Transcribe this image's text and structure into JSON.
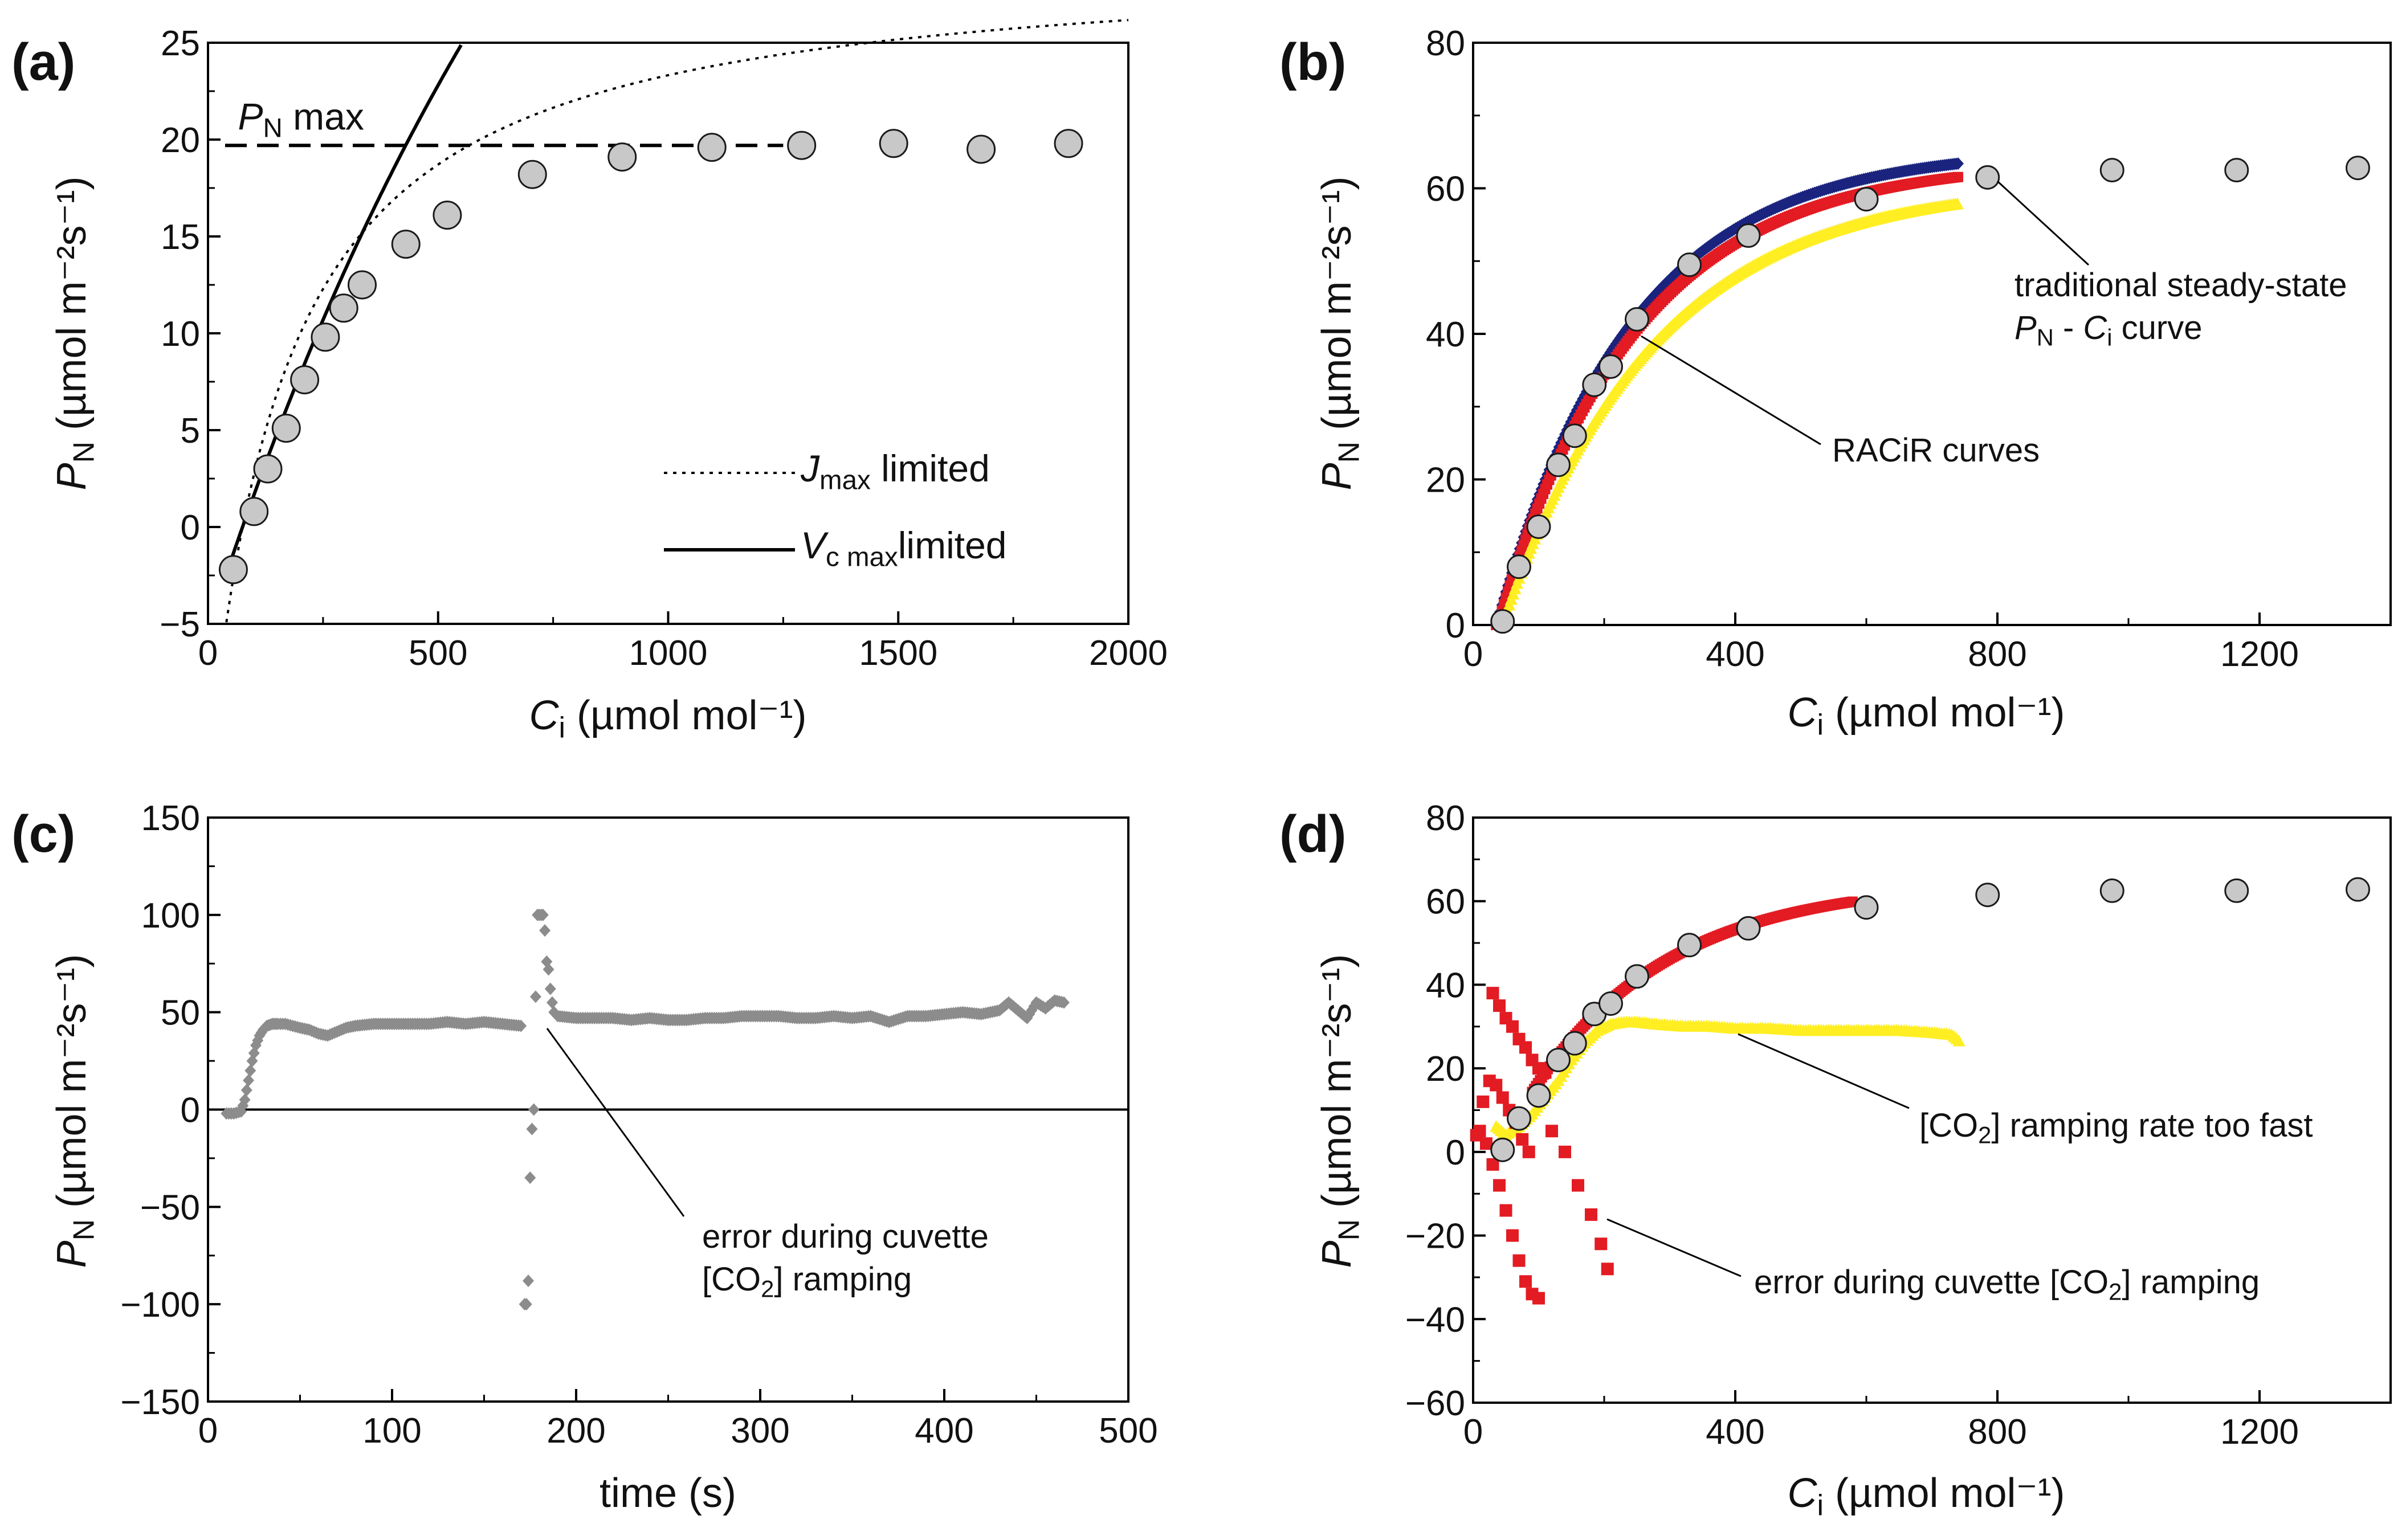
{
  "chart_data": [
    {
      "panel": "(a)",
      "type": "scatter",
      "xlabel": "C",
      "xlabel_sub": "i",
      "xlabel_unit": "(µmol mol⁻¹)",
      "ylabel": "P",
      "ylabel_sub": "N",
      "ylabel_unit": "(µmol m⁻²s⁻¹)",
      "xlim": [
        0,
        2000
      ],
      "ylim": [
        -5,
        25
      ],
      "xticks": [
        "0",
        "500",
        "1000",
        "1500",
        "2000"
      ],
      "yticks": [
        "−5",
        "0",
        "5",
        "10",
        "15",
        "20",
        "25"
      ],
      "points": {
        "x": [
          55,
          100,
          130,
          170,
          210,
          255,
          295,
          335,
          430,
          520,
          705,
          900,
          1095,
          1290,
          1490,
          1680,
          1870
        ],
        "y": [
          -2.2,
          0.8,
          3.0,
          5.1,
          7.6,
          9.8,
          11.3,
          12.5,
          14.6,
          16.1,
          18.2,
          19.1,
          19.6,
          19.7,
          19.8,
          19.5,
          19.8
        ]
      },
      "pn_max": 19.7,
      "pn_max_label": "P",
      "pn_max_label_sub": "N",
      "pn_max_label_tail": "max",
      "legend": [
        {
          "style": "dotted",
          "main": "J",
          "sub": "max",
          "tail": "limited"
        },
        {
          "style": "solid",
          "main": "V",
          "sub": "c max",
          "tail": "limited"
        }
      ]
    },
    {
      "panel": "(b)",
      "type": "scatter",
      "xlabel": "C",
      "xlabel_sub": "i",
      "xlabel_unit": "(µmol mol⁻¹)",
      "ylabel": "P",
      "ylabel_sub": "N",
      "ylabel_unit": "(µmol m⁻²s⁻¹)",
      "xlim": [
        0,
        1400
      ],
      "ylim": [
        0,
        80
      ],
      "xticks": [
        "0",
        "400",
        "800",
        "1200"
      ],
      "yticks": [
        "0",
        "20",
        "40",
        "60",
        "80"
      ],
      "steady_state": {
        "x": [
          45,
          70,
          100,
          130,
          155,
          185,
          210,
          250,
          330,
          420,
          600,
          785,
          975,
          1165,
          1350
        ],
        "y": [
          0.5,
          8.0,
          13.5,
          22.0,
          26.0,
          33.0,
          35.5,
          42.0,
          49.5,
          53.5,
          58.5,
          61.5,
          62.5,
          62.5,
          62.8
        ]
      },
      "racir_series": [
        {
          "name": "RACiR dark blue",
          "color": "#1a237e",
          "xmin": 35,
          "xmax": 740,
          "pmax": 64,
          "k": 205,
          "offset": 1.5
        },
        {
          "name": "RACiR red",
          "color": "#e31b23",
          "xmin": 35,
          "xmax": 740,
          "pmax": 63,
          "k": 210,
          "offset": 0.8
        },
        {
          "name": "RACiR yellow",
          "color": "#ffee22",
          "xmin": 40,
          "xmax": 740,
          "pmax": 62,
          "k": 230,
          "offset": -1.2
        }
      ],
      "annotations": {
        "steady_state_line1": "traditional steady-state",
        "steady_state_line2_p": "P",
        "steady_state_line2_sub": "N",
        "steady_state_line2_mid": " - ",
        "steady_state_line2_c": "C",
        "steady_state_line2_csub": "i",
        "steady_state_line2_tail": " curve",
        "racir": "RACiR curves"
      }
    },
    {
      "panel": "(c)",
      "type": "scatter",
      "xlabel": "time (s)",
      "ylabel": "P",
      "ylabel_sub": "N",
      "ylabel_unit": "(µmol m⁻²s⁻¹)",
      "xlim": [
        0,
        500
      ],
      "ylim": [
        -150,
        150
      ],
      "xticks": [
        "0",
        "100",
        "200",
        "300",
        "400",
        "500"
      ],
      "yticks": [
        "−150",
        "−100",
        "−50",
        "0",
        "50",
        "100",
        "150"
      ],
      "color": "#8c8c8c",
      "series_segments": [
        {
          "t": [
            10,
            14,
            18,
            20,
            22,
            24,
            26,
            28,
            30,
            32,
            35,
            38,
            42,
            46,
            50,
            55,
            60,
            65,
            70,
            75,
            80,
            90,
            100,
            110,
            120,
            130,
            140,
            150,
            160,
            170
          ],
          "v": [
            -2,
            -2,
            -1,
            5,
            15,
            25,
            33,
            38,
            41,
            43,
            44,
            44,
            44,
            43,
            42,
            41,
            39,
            38,
            40,
            42,
            43,
            44,
            44,
            44,
            44,
            45,
            44,
            45,
            44,
            43
          ]
        },
        {
          "t": [
            172,
            173,
            174,
            175,
            176,
            177,
            178,
            179,
            180,
            181,
            182,
            183,
            184,
            185,
            186,
            187,
            188
          ],
          "v": [
            -100,
            -100,
            -88,
            -35,
            -10,
            0,
            58,
            100,
            100,
            100,
            100,
            92,
            76,
            72,
            62,
            55,
            50
          ]
        },
        {
          "t": [
            190,
            200,
            210,
            220,
            230,
            240,
            250,
            260,
            270,
            280,
            290,
            300,
            310,
            320,
            330,
            340,
            350,
            360,
            370,
            380,
            390,
            400,
            410,
            420,
            430,
            435,
            440,
            445,
            450,
            455,
            460,
            465
          ],
          "v": [
            48,
            47,
            47,
            47,
            46,
            47,
            46,
            46,
            47,
            47,
            48,
            48,
            48,
            47,
            47,
            48,
            47,
            48,
            45,
            48,
            48,
            49,
            50,
            49,
            51,
            55,
            51,
            47,
            55,
            52,
            56,
            55
          ]
        }
      ],
      "annotation": {
        "line1": "error during cuvette",
        "line2_pre": "[CO",
        "line2_sub": "2",
        "line2_post": "] ramping"
      }
    },
    {
      "panel": "(d)",
      "type": "scatter",
      "xlabel": "C",
      "xlabel_sub": "i",
      "xlabel_unit": "(µmol mol⁻¹)",
      "ylabel": "P",
      "ylabel_sub": "N",
      "ylabel_unit": "(µmol m⁻²s⁻¹)",
      "xlim": [
        0,
        1400
      ],
      "ylim": [
        -60,
        80
      ],
      "xticks": [
        "0",
        "400",
        "800",
        "1200"
      ],
      "yticks": [
        "−60",
        "−40",
        "−20",
        "0",
        "20",
        "40",
        "60",
        "80"
      ],
      "steady_state": {
        "x": [
          45,
          70,
          100,
          130,
          155,
          185,
          210,
          250,
          330,
          420,
          600,
          785,
          975,
          1165,
          1350
        ],
        "y": [
          0.5,
          8.0,
          13.5,
          22.0,
          26.0,
          33.0,
          35.5,
          42.0,
          49.5,
          53.5,
          58.5,
          61.5,
          62.5,
          62.5,
          62.8
        ]
      },
      "red_curve": {
        "color": "#e31b23",
        "xmin": 90,
        "xmax": 580,
        "pmax": 64,
        "k": 210,
        "offset": 0.8
      },
      "red_error": {
        "color": "#e31b23",
        "x": [
          30,
          40,
          50,
          60,
          70,
          80,
          90,
          100,
          110,
          10,
          20,
          30,
          40,
          50,
          60,
          70,
          80,
          90,
          100,
          5,
          15,
          25,
          35,
          45,
          55,
          65,
          75,
          85,
          120,
          140,
          160,
          180,
          195,
          205
        ],
        "y": [
          38,
          35,
          32,
          30,
          27,
          25,
          22,
          20,
          19,
          5,
          2,
          -3,
          -8,
          -14,
          -20,
          -26,
          -31,
          -34,
          -35,
          4,
          12,
          17,
          16,
          13,
          10,
          7,
          3,
          0,
          5,
          0,
          -8,
          -15,
          -22,
          -28
        ]
      },
      "yellow_curve": {
        "color": "#ffee22",
        "x": [
          35,
          50,
          70,
          90,
          110,
          130,
          150,
          170,
          190,
          210,
          230,
          250,
          280,
          320,
          360,
          400,
          450,
          500,
          550,
          600,
          650,
          700,
          730,
          745
        ],
        "y": [
          6,
          4,
          6,
          9,
          13,
          17,
          22,
          26,
          29,
          30.5,
          31,
          31,
          30.5,
          30,
          30,
          29.5,
          29.5,
          29,
          29,
          29,
          29,
          28.5,
          28,
          26
        ]
      },
      "annotations": {
        "fast_pre": "[CO",
        "fast_sub": "2",
        "fast_post": "] ramping rate too fast",
        "error_pre": "error during cuvette [CO",
        "error_sub": "2",
        "error_post": "] ramping"
      }
    }
  ]
}
